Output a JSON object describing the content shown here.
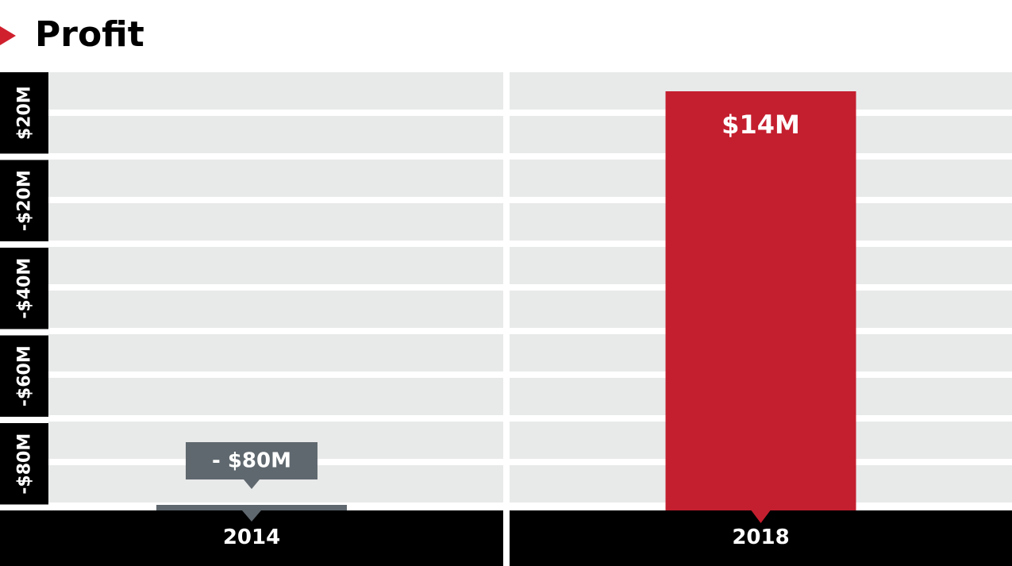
{
  "title": "Profit",
  "colors": {
    "accent": "#d0202e",
    "bar_positive": "#c41f2f",
    "bar_negative": "#5f686f",
    "panel_bg": "#e8e9e9",
    "axis_bg": "#000000"
  },
  "chart_data": {
    "type": "bar",
    "title": "Profit",
    "categories": [
      "2014",
      "2018"
    ],
    "values": [
      -80,
      14
    ],
    "unit": "$M",
    "data_labels": [
      "- $80M",
      "$14M"
    ],
    "y_ticks": [
      "$20M",
      "-$20M",
      "-$40M",
      "-$60M",
      "-$80M"
    ],
    "xlabel": "",
    "ylabel": "",
    "legend": "none",
    "grid": true
  }
}
